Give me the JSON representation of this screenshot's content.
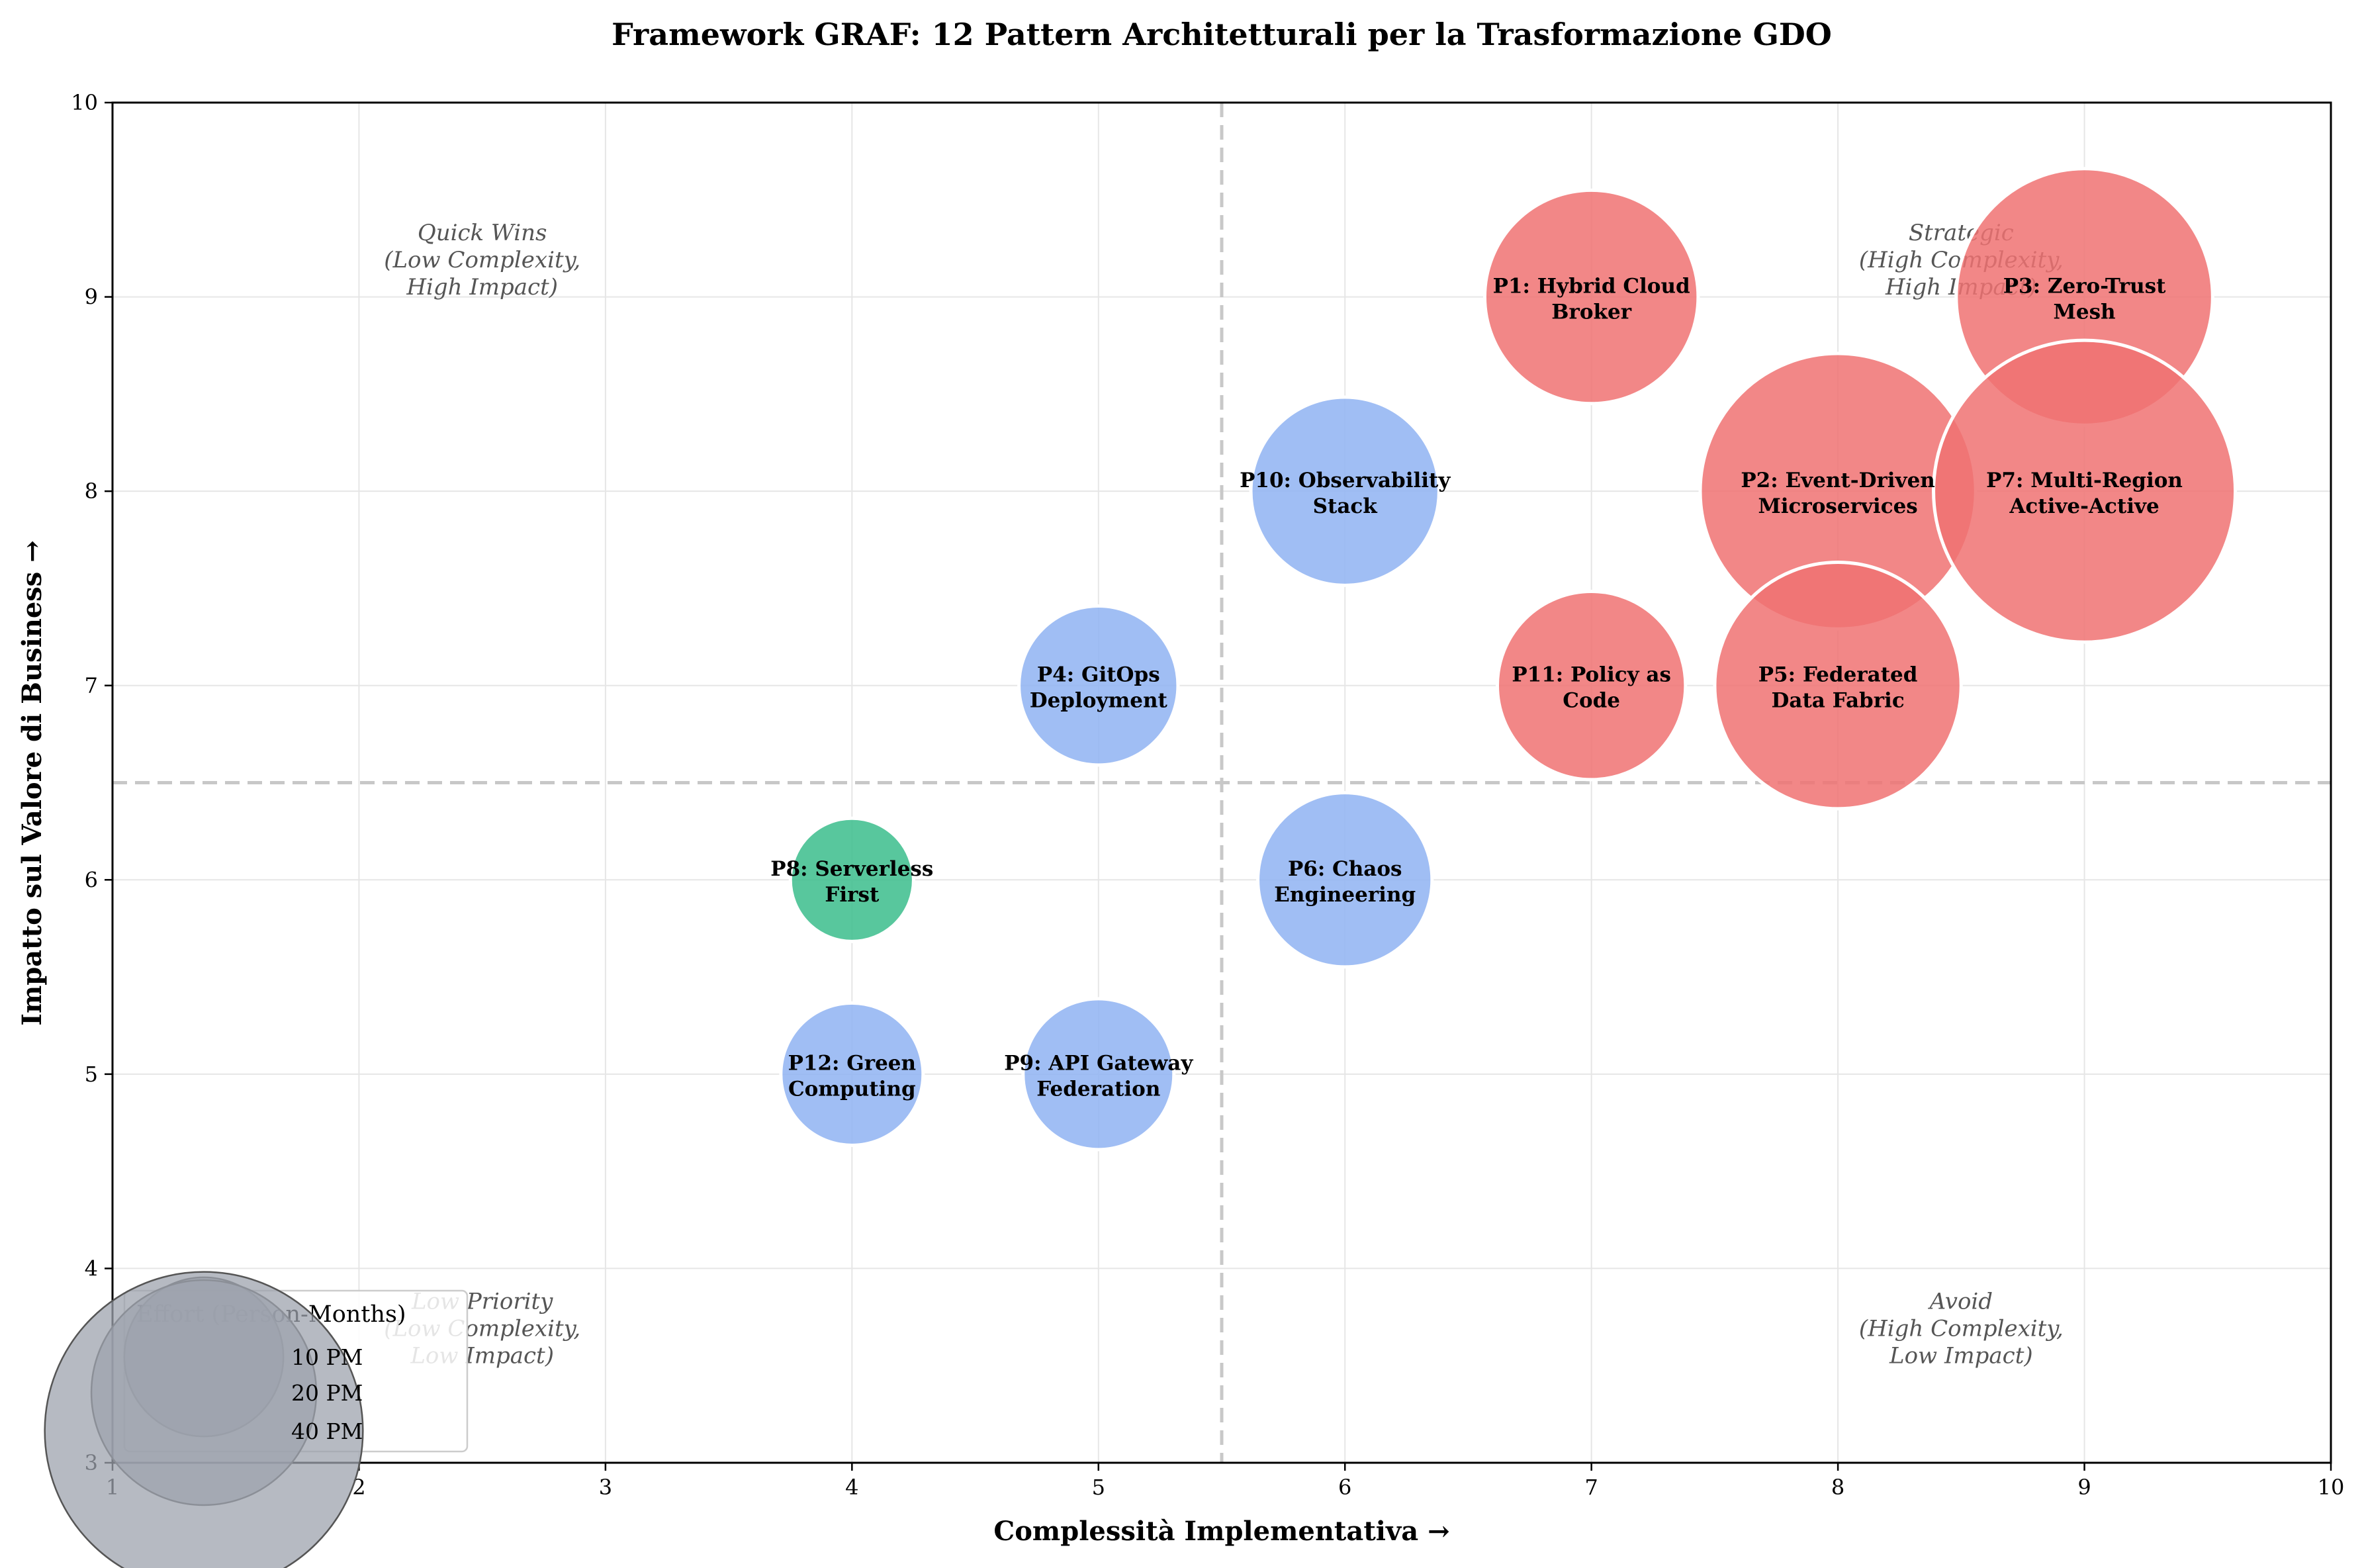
{
  "chart_data": {
    "type": "scatter",
    "title": "Framework GRAF: 12 Pattern Architetturali per la Trasformazione GDO",
    "xlabel": "Complessità Implementativa →",
    "ylabel": "Impatto sul Valore di Business →",
    "xlim": [
      1,
      10
    ],
    "ylim": [
      3,
      10
    ],
    "xticks": [
      1,
      2,
      3,
      4,
      5,
      6,
      7,
      8,
      9,
      10
    ],
    "yticks": [
      3,
      4,
      5,
      6,
      7,
      8,
      9,
      10
    ],
    "grid": true,
    "divider_x": 5.5,
    "divider_y": 6.5,
    "colors": {
      "high": "#f07272",
      "medium": "#8fb3f2",
      "low": "#3bbd8c",
      "legend": "#9ea3ad",
      "divider": "#c8c8c8"
    },
    "quadrants": [
      {
        "lines": [
          "Quick Wins",
          "(Low Complexity,",
          "High Impact)"
        ],
        "x": 2.5,
        "y": 9.2
      },
      {
        "lines": [
          "Strategic",
          "(High Complexity,",
          "High Impact)"
        ],
        "x": 8.5,
        "y": 9.2
      },
      {
        "lines": [
          "Low Priority",
          "(Low Complexity,",
          "Low Impact)"
        ],
        "x": 2.5,
        "y": 3.7
      },
      {
        "lines": [
          "Avoid",
          "(High Complexity,",
          "Low Impact)"
        ],
        "x": 8.5,
        "y": 3.7
      }
    ],
    "points": [
      {
        "id": "P1",
        "lines": [
          "P1: Hybrid Cloud",
          "Broker"
        ],
        "x": 7,
        "y": 9,
        "effort": 18,
        "color": "#f07272"
      },
      {
        "id": "P2",
        "lines": [
          "P2: Event-Driven",
          "Microservices"
        ],
        "x": 8,
        "y": 8,
        "effort": 30,
        "color": "#f07272"
      },
      {
        "id": "P3",
        "lines": [
          "P3: Zero-Trust",
          "Mesh"
        ],
        "x": 9,
        "y": 9,
        "effort": 26,
        "color": "#f07272"
      },
      {
        "id": "P4",
        "lines": [
          "P4: GitOps",
          "Deployment"
        ],
        "x": 5,
        "y": 7,
        "effort": 10,
        "color": "#8fb3f2"
      },
      {
        "id": "P5",
        "lines": [
          "P5: Federated",
          "Data Fabric"
        ],
        "x": 8,
        "y": 7,
        "effort": 24,
        "color": "#f07272"
      },
      {
        "id": "P6",
        "lines": [
          "P6: Chaos",
          "Engineering"
        ],
        "x": 6,
        "y": 6,
        "effort": 12,
        "color": "#8fb3f2"
      },
      {
        "id": "P7",
        "lines": [
          "P7: Multi-Region",
          "Active-Active"
        ],
        "x": 9,
        "y": 8,
        "effort": 36,
        "color": "#f07272"
      },
      {
        "id": "P8",
        "lines": [
          "P8: Serverless",
          "First"
        ],
        "x": 4,
        "y": 6,
        "effort": 6,
        "color": "#3bbd8c"
      },
      {
        "id": "P9",
        "lines": [
          "P9: API Gateway",
          "Federation"
        ],
        "x": 5,
        "y": 5,
        "effort": 9,
        "color": "#8fb3f2"
      },
      {
        "id": "P10",
        "lines": [
          "P10: Observability",
          "Stack"
        ],
        "x": 6,
        "y": 8,
        "effort": 14,
        "color": "#8fb3f2"
      },
      {
        "id": "P11",
        "lines": [
          "P11: Policy as",
          "Code"
        ],
        "x": 7,
        "y": 7,
        "effort": 14,
        "color": "#f07272"
      },
      {
        "id": "P12",
        "lines": [
          "P12: Green",
          "Computing"
        ],
        "x": 4,
        "y": 5,
        "effort": 8,
        "color": "#8fb3f2"
      }
    ],
    "legend": {
      "title": "Effort (Person-Months)",
      "placement": "lower-left",
      "entries": [
        {
          "label": "10 PM",
          "effort": 10
        },
        {
          "label": "20 PM",
          "effort": 20
        },
        {
          "label": "40 PM",
          "effort": 40
        }
      ]
    }
  }
}
